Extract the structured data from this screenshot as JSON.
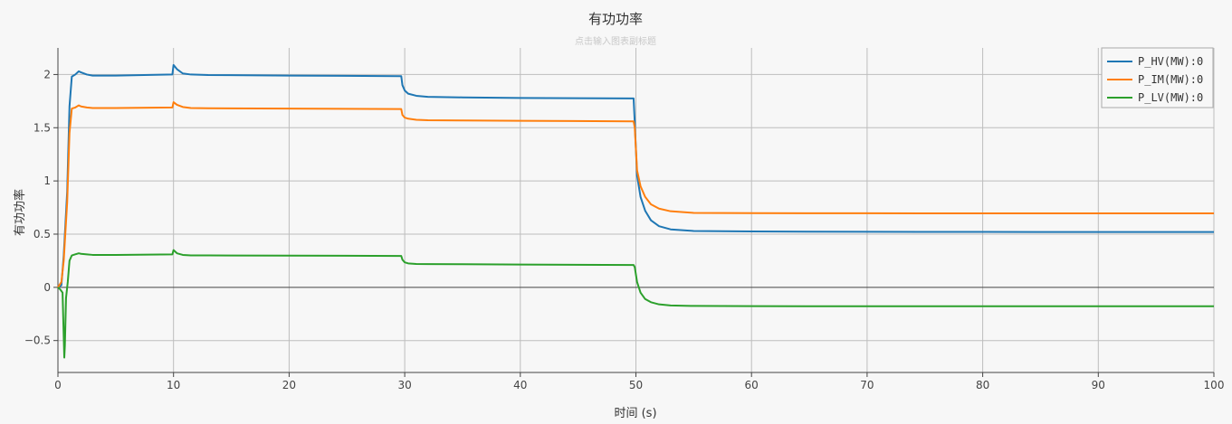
{
  "chart_data": {
    "type": "line",
    "title": "有功功率",
    "subtitle": "点击输入图表副标题",
    "xlabel": "时间 (s)",
    "ylabel": "有功功率",
    "xlim": [
      0,
      100
    ],
    "ylim": [
      -0.8,
      2.25
    ],
    "xticks": [
      0,
      10,
      20,
      30,
      40,
      50,
      60,
      70,
      80,
      90,
      100
    ],
    "yticks": [
      -0.5,
      0,
      0.5,
      1,
      1.5,
      2
    ],
    "ytick_labels": [
      "−0.5",
      "0",
      "0.5",
      "1",
      "1.5",
      "2"
    ],
    "grid": true,
    "legend_position": "top-right",
    "series": [
      {
        "name": "P_HV(MW):0",
        "color": "#1f77b4",
        "x": [
          0,
          0.3,
          0.5,
          0.8,
          1.0,
          1.2,
          1.5,
          1.8,
          2.0,
          2.5,
          3.0,
          5.0,
          9.9,
          10.0,
          10.3,
          10.8,
          11.5,
          13,
          20,
          29.7,
          29.8,
          30.0,
          30.3,
          31,
          32,
          35,
          40,
          49.8,
          49.9,
          50.1,
          50.4,
          50.8,
          51.3,
          52,
          53,
          55,
          60,
          70,
          80,
          90,
          100
        ],
        "y": [
          0,
          0.02,
          0.3,
          0.9,
          1.7,
          1.98,
          2.0,
          2.03,
          2.02,
          2.0,
          1.99,
          1.99,
          2.0,
          2.09,
          2.05,
          2.01,
          2.0,
          1.995,
          1.99,
          1.985,
          1.9,
          1.85,
          1.82,
          1.8,
          1.79,
          1.785,
          1.78,
          1.775,
          1.55,
          1.05,
          0.85,
          0.72,
          0.63,
          0.575,
          0.545,
          0.53,
          0.525,
          0.522,
          0.521,
          0.52,
          0.52
        ]
      },
      {
        "name": "P_IM(MW):0",
        "color": "#ff7f0e",
        "x": [
          0,
          0.3,
          0.5,
          0.8,
          1.0,
          1.2,
          1.5,
          1.8,
          2.0,
          2.5,
          3.0,
          5.0,
          9.9,
          10.0,
          10.3,
          10.8,
          11.5,
          13,
          20,
          29.7,
          29.8,
          30.0,
          30.3,
          31,
          32,
          35,
          40,
          49.8,
          49.9,
          50.1,
          50.4,
          50.8,
          51.3,
          52,
          53,
          55,
          60,
          70,
          80,
          90,
          100
        ],
        "y": [
          0,
          0.05,
          0.25,
          0.8,
          1.45,
          1.68,
          1.69,
          1.71,
          1.7,
          1.69,
          1.685,
          1.685,
          1.69,
          1.74,
          1.715,
          1.695,
          1.685,
          1.683,
          1.68,
          1.675,
          1.62,
          1.595,
          1.585,
          1.575,
          1.57,
          1.568,
          1.565,
          1.56,
          1.5,
          1.1,
          0.95,
          0.85,
          0.78,
          0.74,
          0.715,
          0.7,
          0.697,
          0.696,
          0.695,
          0.695,
          0.695
        ]
      },
      {
        "name": "P_LV(MW):0",
        "color": "#2ca02c",
        "x": [
          0,
          0.2,
          0.4,
          0.55,
          0.6,
          0.7,
          0.85,
          1.0,
          1.2,
          1.5,
          1.8,
          2.0,
          2.5,
          3.0,
          5.0,
          9.9,
          10.0,
          10.3,
          10.8,
          11.5,
          13,
          20,
          29.7,
          29.8,
          30.0,
          30.3,
          31,
          32,
          35,
          40,
          49.8,
          49.9,
          50.1,
          50.4,
          50.8,
          51.3,
          52,
          53,
          55,
          60,
          70,
          80,
          90,
          100
        ],
        "y": [
          0,
          -0.02,
          -0.05,
          -0.66,
          -0.55,
          -0.1,
          0.05,
          0.25,
          0.3,
          0.31,
          0.32,
          0.315,
          0.31,
          0.305,
          0.305,
          0.31,
          0.35,
          0.32,
          0.305,
          0.3,
          0.3,
          0.298,
          0.295,
          0.26,
          0.235,
          0.225,
          0.22,
          0.218,
          0.217,
          0.214,
          0.21,
          0.19,
          0.05,
          -0.05,
          -0.11,
          -0.14,
          -0.16,
          -0.17,
          -0.175,
          -0.177,
          -0.178,
          -0.178,
          -0.178,
          -0.178
        ]
      }
    ]
  }
}
